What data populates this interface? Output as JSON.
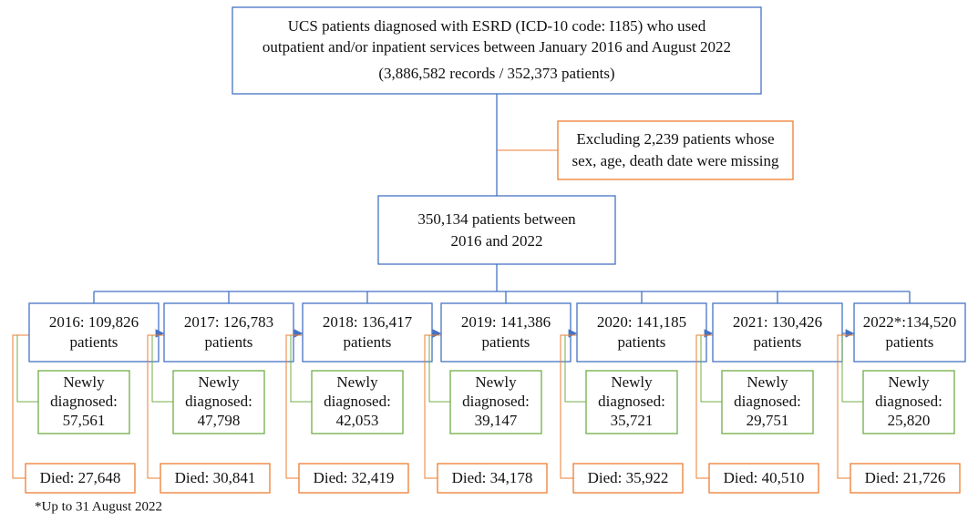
{
  "top_box": {
    "lines": [
      "UCS patients diagnosed with ESRD (ICD-10 code: I185) who used",
      "outpatient and/or inpatient services between January 2016 and August 2022",
      "(3,886,582 records / 352,373 patients)"
    ]
  },
  "exclusion_box": {
    "lines": [
      "Excluding 2,239 patients whose",
      "sex, age, death date were missing"
    ]
  },
  "middle_box": {
    "lines": [
      "350,134 patients between",
      "2016 and 2022"
    ]
  },
  "years": [
    {
      "lines": [
        "2016: 109,826",
        "patients"
      ],
      "newly": [
        "Newly",
        "diagnosed:",
        "57,561"
      ],
      "died": "Died: 27,648"
    },
    {
      "lines": [
        "2017: 126,783",
        "patients"
      ],
      "newly": [
        "Newly",
        "diagnosed:",
        "47,798"
      ],
      "died": "Died: 30,841"
    },
    {
      "lines": [
        "2018: 136,417",
        "patients"
      ],
      "newly": [
        "Newly",
        "diagnosed:",
        "42,053"
      ],
      "died": "Died: 32,419"
    },
    {
      "lines": [
        "2019: 141,386",
        "patients"
      ],
      "newly": [
        "Newly",
        "diagnosed:",
        "39,147"
      ],
      "died": "Died: 34,178"
    },
    {
      "lines": [
        "2020: 141,185",
        "patients"
      ],
      "newly": [
        "Newly",
        "diagnosed:",
        "35,721"
      ],
      "died": "Died: 35,922"
    },
    {
      "lines": [
        "2021: 130,426",
        "patients"
      ],
      "newly": [
        "Newly",
        "diagnosed:",
        "29,751"
      ],
      "died": "Died: 40,510"
    },
    {
      "lines": [
        "2022*:134,520",
        "patients"
      ],
      "newly": [
        "Newly",
        "diagnosed:",
        "25,820"
      ],
      "died": "Died: 21,726"
    }
  ],
  "footnote": "*Up to 31 August 2022"
}
